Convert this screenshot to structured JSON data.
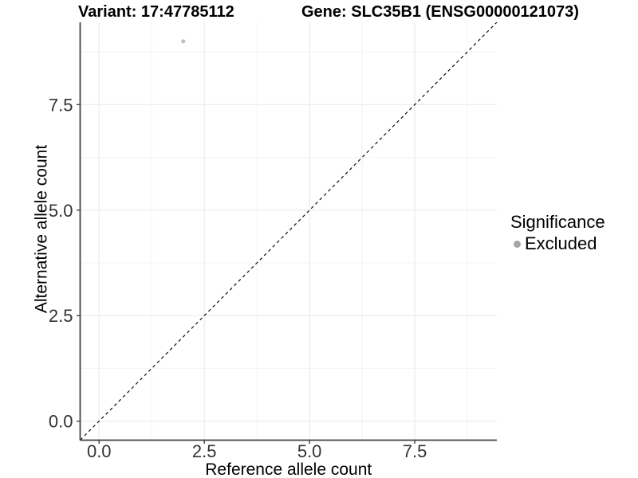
{
  "chart_data": {
    "type": "scatter",
    "titles": [
      "Variant: 17:47785112",
      "Gene: SLC35B1 (ENSG00000121073)"
    ],
    "xlabel": "Reference allele count",
    "ylabel": "Alternative allele count",
    "xlim": [
      -0.45,
      9.45
    ],
    "ylim": [
      -0.45,
      9.45
    ],
    "x_ticks": {
      "values": [
        0,
        2.5,
        5,
        7.5
      ],
      "labels": [
        "0.0",
        "2.5",
        "5.0",
        "7.5"
      ]
    },
    "y_ticks": {
      "values": [
        0,
        2.5,
        5,
        7.5
      ],
      "labels": [
        "0.0",
        "2.5",
        "5.0",
        "7.5"
      ]
    },
    "minor_grid": [
      1.25,
      3.75,
      6.25,
      8.75
    ],
    "grid": "on",
    "series": [
      {
        "name": "Excluded",
        "color": "#bfbfbf",
        "point_radius": 2.6,
        "points": [
          [
            2,
            9
          ]
        ]
      }
    ],
    "reference_line": {
      "slope": 1,
      "intercept": 0,
      "linetype": "dashed",
      "color": "#111111"
    },
    "legend": {
      "title": "Significance",
      "position": "right",
      "entries": [
        {
          "label": "Excluded",
          "color": "#a6a6a6"
        }
      ]
    }
  },
  "colors": {
    "background": "#ffffff",
    "grid_major": "#e9e9e9",
    "grid_minor": "#f4f4f4",
    "axis_line": "#404040",
    "tick_mark": "#404040",
    "tick_label": "#333333",
    "axis_title": "#000000",
    "title_text": "#000000"
  }
}
